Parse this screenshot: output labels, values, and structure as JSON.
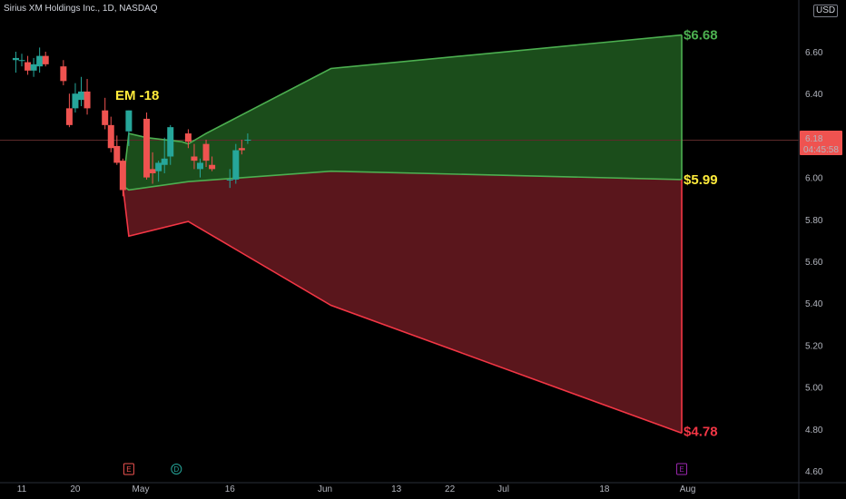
{
  "header": {
    "symbol_title": "Sirius XM Holdings Inc., 1D, NASDAQ",
    "currency": "USD"
  },
  "price_tag": {
    "value": "6.18",
    "countdown": "04:45:58"
  },
  "colors": {
    "up": "#26a69a",
    "down": "#ef5350",
    "green_band": "#4caf50",
    "red_band": "#f23645",
    "green_fill": "#1b4d1b",
    "red_fill": "#5a161c",
    "yellow": "#ffeb3b"
  },
  "chart_data": {
    "type": "candlestick",
    "title": "Sirius XM Holdings Inc., 1D, NASDAQ",
    "y_ticks": [
      "4.60",
      "4.80",
      "5.00",
      "5.20",
      "5.40",
      "5.60",
      "5.80",
      "6.00",
      "6.20",
      "6.40",
      "6.60"
    ],
    "ylim": [
      4.55,
      6.75
    ],
    "x_ticks": [
      {
        "label": "11",
        "day": 0
      },
      {
        "label": "20",
        "day": 9
      },
      {
        "label": "May",
        "day": 20
      },
      {
        "label": "16",
        "day": 35
      },
      {
        "label": "Jun",
        "day": 51
      },
      {
        "label": "13",
        "day": 63
      },
      {
        "label": "22",
        "day": 72
      },
      {
        "label": "Jul",
        "day": 81
      },
      {
        "label": "18",
        "day": 98
      },
      {
        "label": "Aug",
        "day": 112
      }
    ],
    "candles": [
      {
        "day": -1,
        "o": 6.56,
        "h": 6.6,
        "l": 6.5,
        "c": 6.57
      },
      {
        "day": 0,
        "o": 6.56,
        "h": 6.59,
        "l": 6.53,
        "c": 6.56
      },
      {
        "day": 1,
        "o": 6.55,
        "h": 6.58,
        "l": 6.49,
        "c": 6.51
      },
      {
        "day": 2,
        "o": 6.51,
        "h": 6.57,
        "l": 6.48,
        "c": 6.54
      },
      {
        "day": 3,
        "o": 6.53,
        "h": 6.62,
        "l": 6.5,
        "c": 6.58
      },
      {
        "day": 4,
        "o": 6.58,
        "h": 6.6,
        "l": 6.53,
        "c": 6.54
      },
      {
        "day": 7,
        "o": 6.53,
        "h": 6.56,
        "l": 6.44,
        "c": 6.46
      },
      {
        "day": 8,
        "o": 6.33,
        "h": 6.4,
        "l": 6.24,
        "c": 6.25
      },
      {
        "day": 9,
        "o": 6.33,
        "h": 6.45,
        "l": 6.31,
        "c": 6.4
      },
      {
        "day": 10,
        "o": 6.37,
        "h": 6.48,
        "l": 6.34,
        "c": 6.41
      },
      {
        "day": 11,
        "o": 6.41,
        "h": 6.47,
        "l": 6.3,
        "c": 6.33
      },
      {
        "day": 14,
        "o": 6.32,
        "h": 6.38,
        "l": 6.23,
        "c": 6.25
      },
      {
        "day": 15,
        "o": 6.25,
        "h": 6.29,
        "l": 6.12,
        "c": 6.14
      },
      {
        "day": 16,
        "o": 6.15,
        "h": 6.2,
        "l": 6.06,
        "c": 6.07
      },
      {
        "day": 17,
        "o": 6.08,
        "h": 6.09,
        "l": 5.91,
        "c": 5.94
      },
      {
        "day": 18,
        "o": 6.22,
        "h": 6.32,
        "l": 6.15,
        "c": 6.32
      },
      {
        "day": 21,
        "o": 6.28,
        "h": 6.31,
        "l": 5.99,
        "c": 6.0
      },
      {
        "day": 22,
        "o": 6.04,
        "h": 6.12,
        "l": 5.97,
        "c": 6.02
      },
      {
        "day": 23,
        "o": 6.03,
        "h": 6.08,
        "l": 5.98,
        "c": 6.07
      },
      {
        "day": 24,
        "o": 6.06,
        "h": 6.19,
        "l": 6.02,
        "c": 6.09
      },
      {
        "day": 25,
        "o": 6.1,
        "h": 6.25,
        "l": 6.06,
        "c": 6.24
      },
      {
        "day": 28,
        "o": 6.21,
        "h": 6.23,
        "l": 6.14,
        "c": 6.17
      },
      {
        "day": 29,
        "o": 6.1,
        "h": 6.16,
        "l": 6.04,
        "c": 6.08
      },
      {
        "day": 30,
        "o": 6.04,
        "h": 6.09,
        "l": 6.0,
        "c": 6.07
      },
      {
        "day": 31,
        "o": 6.16,
        "h": 6.18,
        "l": 6.05,
        "c": 6.08
      },
      {
        "day": 32,
        "o": 6.06,
        "h": 6.1,
        "l": 6.03,
        "c": 6.04
      },
      {
        "day": 35,
        "o": 5.99,
        "h": 6.04,
        "l": 5.95,
        "c": 5.99
      },
      {
        "day": 36,
        "o": 5.99,
        "h": 6.16,
        "l": 5.97,
        "c": 6.13
      },
      {
        "day": 37,
        "o": 6.14,
        "h": 6.18,
        "l": 6.11,
        "c": 6.13
      },
      {
        "day": 38,
        "o": 6.18,
        "h": 6.21,
        "l": 6.16,
        "c": 6.18
      }
    ],
    "expected_move": {
      "label": "EM -18",
      "upper": [
        {
          "day": 17,
          "v": 5.96
        },
        {
          "day": 18,
          "v": 6.21
        },
        {
          "day": 21,
          "v": 6.19
        },
        {
          "day": 27,
          "v": 6.17
        },
        {
          "day": 28,
          "v": 6.16
        },
        {
          "day": 31,
          "v": 6.21
        },
        {
          "day": 52,
          "v": 6.52
        },
        {
          "day": 111,
          "v": 6.68
        }
      ],
      "mid": [
        {
          "day": 17,
          "v": 5.96
        },
        {
          "day": 18,
          "v": 5.94
        },
        {
          "day": 28,
          "v": 5.98
        },
        {
          "day": 52,
          "v": 6.03
        },
        {
          "day": 111,
          "v": 5.99
        }
      ],
      "lower": [
        {
          "day": 17,
          "v": 5.96
        },
        {
          "day": 18,
          "v": 5.72
        },
        {
          "day": 28,
          "v": 5.79
        },
        {
          "day": 52,
          "v": 5.39
        },
        {
          "day": 111,
          "v": 4.78
        }
      ],
      "upper_label": "$6.68",
      "mid_label": "$5.99",
      "lower_label": "$4.78"
    },
    "events": [
      {
        "day": 18,
        "type": "earnings",
        "glyph": "E",
        "color": "#ef5350"
      },
      {
        "day": 26,
        "type": "dividend",
        "glyph": "D",
        "color": "#26a69a"
      },
      {
        "day": 111,
        "type": "earnings",
        "glyph": "E",
        "color": "#9c27b0"
      }
    ],
    "last_price": 6.18
  }
}
